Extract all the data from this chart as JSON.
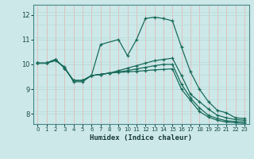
{
  "xlabel": "Humidex (Indice chaleur)",
  "xlim": [
    -0.5,
    23.5
  ],
  "ylim": [
    7.6,
    12.4
  ],
  "yticks": [
    8,
    9,
    10,
    11,
    12
  ],
  "xticks": [
    0,
    1,
    2,
    3,
    4,
    5,
    6,
    7,
    8,
    9,
    10,
    11,
    12,
    13,
    14,
    15,
    16,
    17,
    18,
    19,
    20,
    21,
    22,
    23
  ],
  "bg_color": "#cce8e8",
  "grid_color_v": "#e8b0b0",
  "grid_color_h": "#b8d8d8",
  "line_color": "#1a6b5a",
  "lines": [
    {
      "x": [
        0,
        1,
        2,
        3,
        4,
        5,
        6,
        7,
        9,
        10,
        11,
        12,
        13,
        14,
        15,
        16,
        17,
        18,
        19,
        20,
        21,
        22,
        23
      ],
      "y": [
        10.05,
        10.05,
        10.15,
        9.9,
        9.3,
        9.3,
        9.55,
        10.8,
        11.0,
        10.35,
        11.0,
        11.85,
        11.9,
        11.85,
        11.75,
        10.7,
        9.7,
        9.0,
        8.5,
        8.15,
        8.05,
        7.85,
        7.82
      ]
    },
    {
      "x": [
        0,
        1,
        2,
        3,
        4,
        5,
        6,
        7,
        8,
        9,
        10,
        11,
        12,
        13,
        14,
        15,
        16,
        17,
        18,
        19,
        20,
        21,
        22,
        23
      ],
      "y": [
        10.05,
        10.05,
        10.2,
        9.85,
        9.35,
        9.35,
        9.55,
        9.6,
        9.65,
        9.75,
        9.85,
        9.95,
        10.05,
        10.15,
        10.2,
        10.25,
        9.55,
        8.8,
        8.5,
        8.2,
        7.95,
        7.85,
        7.78,
        7.75
      ]
    },
    {
      "x": [
        0,
        1,
        2,
        3,
        4,
        5,
        6,
        7,
        8,
        9,
        10,
        11,
        12,
        13,
        14,
        15,
        16,
        17,
        18,
        19,
        20,
        21,
        22,
        23
      ],
      "y": [
        10.05,
        10.05,
        10.2,
        9.85,
        9.35,
        9.35,
        9.55,
        9.6,
        9.65,
        9.7,
        9.75,
        9.82,
        9.88,
        9.95,
        10.0,
        10.0,
        9.2,
        8.65,
        8.25,
        7.95,
        7.82,
        7.73,
        7.7,
        7.68
      ]
    },
    {
      "x": [
        0,
        1,
        2,
        3,
        4,
        5,
        6,
        7,
        8,
        9,
        10,
        11,
        12,
        13,
        14,
        15,
        16,
        17,
        18,
        19,
        20,
        21,
        22,
        23
      ],
      "y": [
        10.05,
        10.05,
        10.2,
        9.85,
        9.35,
        9.35,
        9.55,
        9.6,
        9.65,
        9.68,
        9.7,
        9.72,
        9.75,
        9.78,
        9.8,
        9.82,
        9.0,
        8.55,
        8.1,
        7.88,
        7.75,
        7.68,
        7.65,
        7.62
      ]
    }
  ]
}
